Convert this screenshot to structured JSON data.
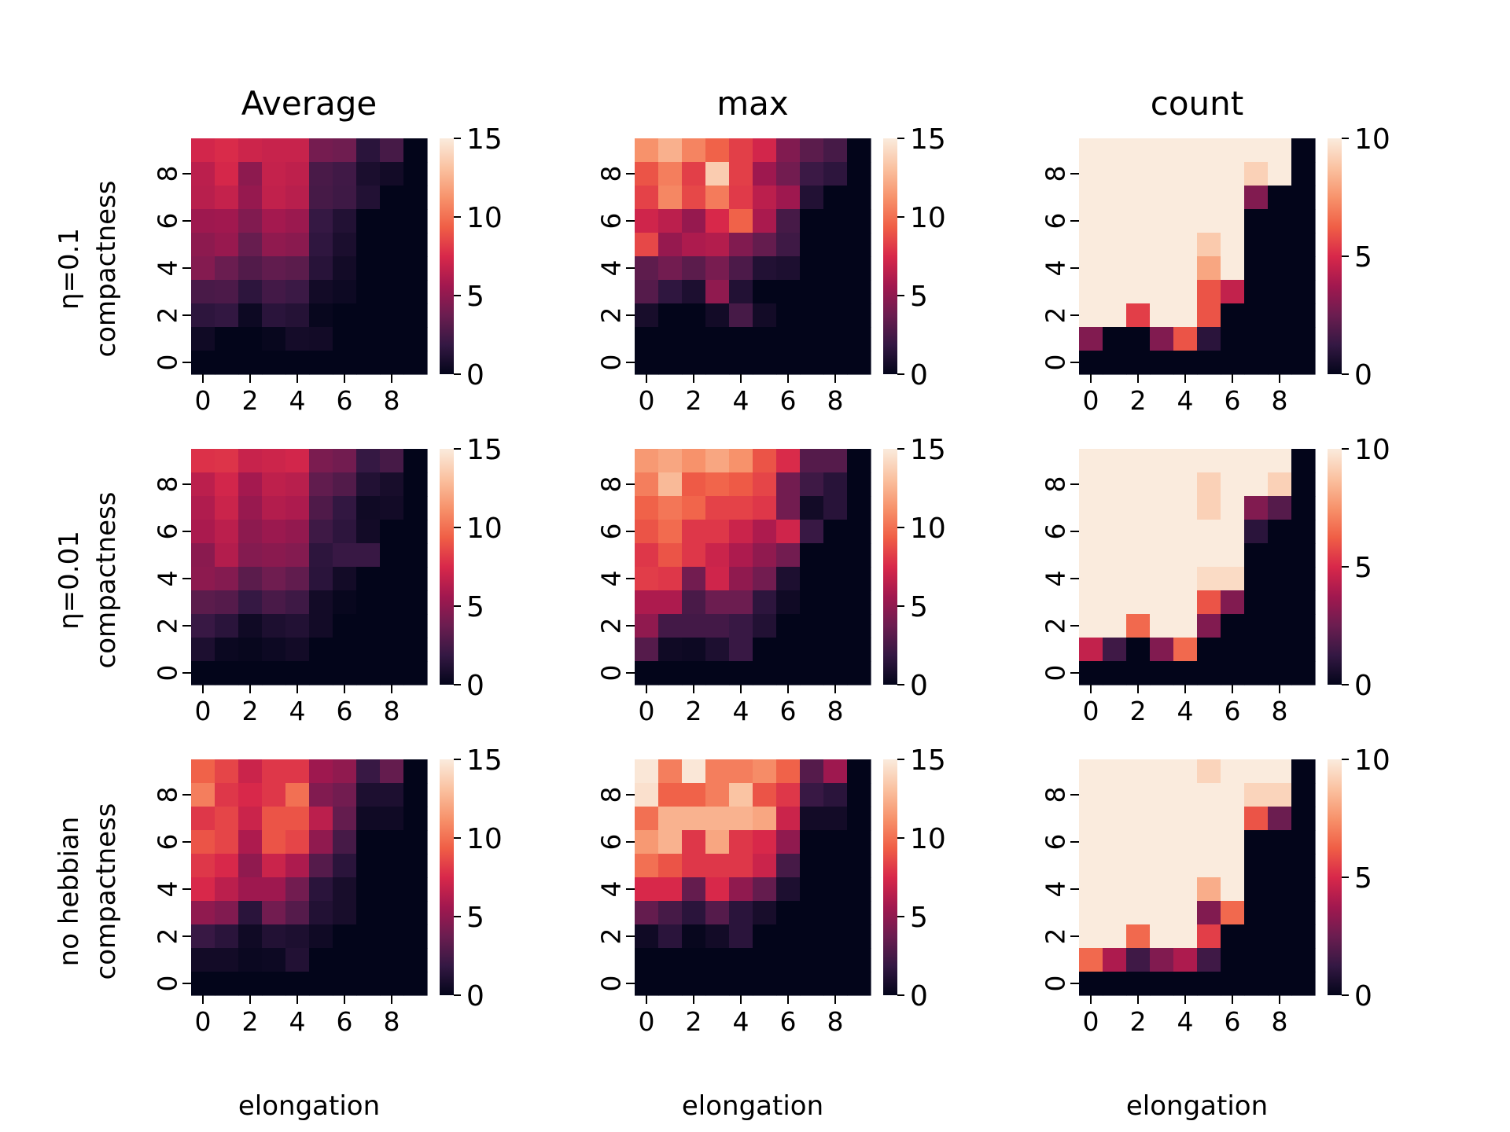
{
  "chart_data": {
    "type": "heatmap",
    "grid": {
      "rows": 10,
      "cols": 10
    },
    "col_titles": [
      "Average",
      "max",
      "count"
    ],
    "row_labels": [
      "η=0.1",
      "η=0.01",
      "no hebbian"
    ],
    "xlabel": "elongation",
    "ylabel": "compactness",
    "x_ticks": [
      "0",
      "2",
      "4",
      "6",
      "8"
    ],
    "y_ticks": [
      "0",
      "2",
      "4",
      "6",
      "8"
    ],
    "colorbars": [
      {
        "min": 0,
        "max": 15,
        "ticks": [
          "0",
          "5",
          "10",
          "15"
        ]
      },
      {
        "min": 0,
        "max": 15,
        "ticks": [
          "0",
          "5",
          "10",
          "15"
        ]
      },
      {
        "min": 0,
        "max": 10,
        "ticks": [
          "0",
          "5",
          "10"
        ]
      }
    ],
    "colormap": [
      "#03051a",
      "#341843",
      "#6b1d50",
      "#a2184f",
      "#d8284a",
      "#f05f46",
      "#f7936c",
      "#fac2a1",
      "#faebdd"
    ],
    "panels": [
      {
        "row": 0,
        "col": 0,
        "title": "Average",
        "vmax": 15,
        "values": [
          [
            7.3,
            7.6,
            7.1,
            6.9,
            6.9,
            4.1,
            3.9,
            1.5,
            2.5,
            0
          ],
          [
            6.5,
            7.4,
            4.9,
            6.8,
            6.6,
            2.6,
            2.3,
            0.9,
            0.6,
            0
          ],
          [
            6.4,
            6.8,
            5.2,
            6.7,
            6.4,
            2.5,
            2.2,
            1.2,
            0,
            0
          ],
          [
            5.5,
            5.6,
            4.5,
            5.7,
            5.4,
            1.9,
            1.2,
            0,
            0,
            0
          ],
          [
            4.9,
            5.3,
            3.6,
            5.0,
            4.8,
            1.7,
            0.9,
            0,
            0,
            0
          ],
          [
            4.6,
            3.7,
            2.9,
            3.4,
            3.2,
            1.4,
            0.6,
            0,
            0,
            0
          ],
          [
            2.6,
            2.7,
            1.6,
            2.4,
            2.1,
            0.6,
            0.4,
            0,
            0,
            0
          ],
          [
            1.6,
            1.8,
            0.4,
            1.5,
            1.3,
            0.2,
            0,
            0,
            0,
            0
          ],
          [
            0.5,
            0,
            0,
            0.2,
            0.7,
            0.6,
            0,
            0,
            0,
            0
          ],
          [
            0,
            0,
            0,
            0,
            0,
            0,
            0,
            0,
            0,
            0
          ]
        ]
      },
      {
        "row": 0,
        "col": 1,
        "title": "max",
        "vmax": 15,
        "values": [
          [
            11.2,
            12.4,
            10.7,
            9.5,
            8.3,
            7.3,
            4.5,
            3.2,
            2.5,
            0
          ],
          [
            9.0,
            10.5,
            8.3,
            13.6,
            8.3,
            5.5,
            4.0,
            2.1,
            1.6,
            0
          ],
          [
            8.4,
            10.8,
            8.6,
            10.4,
            8.1,
            6.5,
            5.5,
            1.2,
            0,
            0
          ],
          [
            7.2,
            6.5,
            5.2,
            7.5,
            9.5,
            5.9,
            2.5,
            0,
            0,
            0
          ],
          [
            8.6,
            5.2,
            6.0,
            6.2,
            4.5,
            3.5,
            2.2,
            0,
            0,
            0
          ],
          [
            3.3,
            4.0,
            3.2,
            4.2,
            2.7,
            1.2,
            1.0,
            0,
            0,
            0
          ],
          [
            3.0,
            1.7,
            1.0,
            5.0,
            1.2,
            0,
            0,
            0,
            0,
            0
          ],
          [
            0.8,
            0,
            0,
            0.6,
            2.5,
            0.6,
            0,
            0,
            0,
            0
          ],
          [
            0,
            0,
            0,
            0,
            0,
            0,
            0,
            0,
            0,
            0
          ],
          [
            0,
            0,
            0,
            0,
            0,
            0,
            0,
            0,
            0,
            0
          ]
        ]
      },
      {
        "row": 0,
        "col": 2,
        "title": "count",
        "vmax": 10,
        "values": [
          [
            10,
            10,
            10,
            10,
            10,
            10,
            10,
            10,
            10,
            0
          ],
          [
            10,
            10,
            10,
            10,
            10,
            10,
            10,
            9.2,
            10,
            0
          ],
          [
            10,
            10,
            10,
            10,
            10,
            10,
            10,
            3.0,
            0,
            0
          ],
          [
            10,
            10,
            10,
            10,
            10,
            10,
            10,
            0,
            0,
            0
          ],
          [
            10,
            10,
            10,
            10,
            10,
            9.0,
            10,
            0,
            0,
            0
          ],
          [
            10,
            10,
            10,
            10,
            10,
            8.0,
            10,
            0,
            0,
            0
          ],
          [
            10,
            10,
            10,
            10,
            10,
            6.0,
            4.5,
            0,
            0,
            0
          ],
          [
            10,
            10,
            5.5,
            10,
            10,
            6.0,
            0,
            0,
            0,
            0
          ],
          [
            3.0,
            0,
            0,
            3.0,
            6.0,
            1.0,
            0,
            0,
            0,
            0
          ],
          [
            0,
            0,
            0,
            0,
            0,
            0,
            0,
            0,
            0,
            0
          ]
        ]
      },
      {
        "row": 1,
        "col": 0,
        "title": "",
        "vmax": 15,
        "values": [
          [
            7.8,
            7.9,
            6.9,
            7.1,
            7.3,
            4.3,
            4.0,
            1.9,
            2.5,
            0
          ],
          [
            6.5,
            7.3,
            5.7,
            6.6,
            6.4,
            3.4,
            2.9,
            1.2,
            0.8,
            0
          ],
          [
            6.1,
            7.0,
            5.3,
            6.2,
            6.0,
            2.8,
            1.8,
            0.5,
            0.6,
            0
          ],
          [
            5.9,
            6.5,
            4.9,
            5.4,
            5.1,
            2.2,
            1.6,
            0.6,
            0,
            0
          ],
          [
            4.8,
            6.2,
            4.6,
            4.8,
            4.6,
            1.6,
            2.0,
            2.0,
            0,
            0
          ],
          [
            4.9,
            4.6,
            3.2,
            3.9,
            3.4,
            1.5,
            0.6,
            0,
            0,
            0
          ],
          [
            3.2,
            3.0,
            1.9,
            2.6,
            2.2,
            0.6,
            0.2,
            0,
            0,
            0
          ],
          [
            2.0,
            1.5,
            0.5,
            1.0,
            1.2,
            0.6,
            0,
            0,
            0,
            0
          ],
          [
            1.0,
            0.3,
            0.2,
            0.4,
            0.6,
            0,
            0,
            0,
            0,
            0
          ],
          [
            0,
            0,
            0,
            0,
            0,
            0,
            0,
            0,
            0,
            0
          ]
        ]
      },
      {
        "row": 1,
        "col": 1,
        "title": "",
        "vmax": 15,
        "values": [
          [
            11.5,
            12.0,
            11.2,
            12.0,
            11.2,
            9.0,
            7.6,
            3.0,
            3.0,
            0
          ],
          [
            10.5,
            12.8,
            9.2,
            9.6,
            9.2,
            8.5,
            4.0,
            2.2,
            1.4,
            0
          ],
          [
            9.5,
            10.2,
            9.6,
            8.4,
            8.4,
            8.0,
            4.0,
            0.6,
            1.4,
            0
          ],
          [
            9.0,
            9.8,
            8.0,
            8.0,
            7.0,
            6.0,
            7.2,
            2.0,
            0,
            0
          ],
          [
            8.0,
            9.0,
            8.0,
            7.0,
            6.0,
            5.0,
            4.0,
            0,
            0,
            0
          ],
          [
            8.2,
            8.0,
            4.0,
            7.2,
            5.0,
            4.0,
            1.0,
            0,
            0,
            0
          ],
          [
            6.0,
            6.0,
            2.6,
            3.8,
            3.8,
            1.6,
            0.5,
            0,
            0,
            0
          ],
          [
            5.0,
            2.4,
            2.4,
            2.4,
            2.0,
            1.2,
            0,
            0,
            0,
            0
          ],
          [
            3.0,
            0.5,
            0.4,
            1.0,
            2.0,
            0,
            0,
            0,
            0,
            0
          ],
          [
            0,
            0,
            0,
            0,
            0,
            0,
            0,
            0,
            0,
            0
          ]
        ]
      },
      {
        "row": 1,
        "col": 2,
        "title": "count",
        "vmax": 10,
        "values": [
          [
            10,
            10,
            10,
            10,
            10,
            10,
            10,
            10,
            10,
            0
          ],
          [
            10,
            10,
            10,
            10,
            10,
            9.2,
            10,
            10,
            9.2,
            0
          ],
          [
            10,
            10,
            10,
            10,
            10,
            9.2,
            10,
            3.0,
            2.0,
            0
          ],
          [
            10,
            10,
            10,
            10,
            10,
            10,
            10,
            1.0,
            0,
            0
          ],
          [
            10,
            10,
            10,
            10,
            10,
            10,
            10,
            0,
            0,
            0
          ],
          [
            10,
            10,
            10,
            10,
            10,
            9.5,
            9.5,
            0,
            0,
            0
          ],
          [
            10,
            10,
            10,
            10,
            10,
            6.0,
            3.0,
            0,
            0,
            0
          ],
          [
            10,
            10,
            6.5,
            10,
            10,
            3.0,
            0,
            0,
            0,
            0
          ],
          [
            4.5,
            1.5,
            0,
            3.0,
            6.5,
            0,
            0,
            0,
            0,
            0
          ],
          [
            0,
            0,
            0,
            0,
            0,
            0,
            0,
            0,
            0,
            0
          ]
        ]
      },
      {
        "row": 2,
        "col": 0,
        "title": "",
        "vmax": 15,
        "values": [
          [
            9.5,
            8.5,
            7.0,
            8.0,
            8.0,
            5.5,
            5.0,
            2.0,
            3.5,
            0
          ],
          [
            10.5,
            8.0,
            7.5,
            8.0,
            10.0,
            4.5,
            4.0,
            1.0,
            1.0,
            0
          ],
          [
            8.0,
            8.5,
            7.0,
            9.0,
            9.0,
            6.5,
            3.5,
            0.5,
            0.5,
            0
          ],
          [
            9.0,
            8.5,
            6.0,
            9.0,
            8.5,
            5.0,
            2.5,
            0,
            0,
            0
          ],
          [
            8.0,
            7.5,
            5.0,
            7.0,
            6.0,
            3.0,
            1.5,
            0,
            0,
            0
          ],
          [
            7.5,
            6.5,
            5.5,
            5.5,
            4.0,
            1.5,
            0.8,
            0,
            0,
            0
          ],
          [
            5.0,
            4.5,
            1.5,
            4.0,
            3.0,
            1.2,
            0.8,
            0,
            0,
            0
          ],
          [
            2.0,
            1.5,
            0.5,
            1.2,
            1.0,
            0.5,
            0,
            0,
            0,
            0
          ],
          [
            0.6,
            0.6,
            0.3,
            0.4,
            1.2,
            0,
            0,
            0,
            0,
            0
          ],
          [
            0,
            0,
            0,
            0,
            0,
            0,
            0,
            0,
            0,
            0
          ]
        ]
      },
      {
        "row": 2,
        "col": 1,
        "title": "",
        "vmax": 15,
        "values": [
          [
            14.8,
            10.5,
            14.8,
            10.5,
            10.5,
            11.0,
            9.5,
            3.0,
            5.5,
            0
          ],
          [
            14.5,
            9.5,
            9.5,
            10.5,
            13.2,
            9.0,
            8.0,
            2.0,
            1.5,
            0
          ],
          [
            10.0,
            12.5,
            12.5,
            12.5,
            12.5,
            12.0,
            7.0,
            0.6,
            0.6,
            0
          ],
          [
            11.5,
            12.5,
            8.0,
            12.0,
            8.0,
            7.5,
            5.0,
            0,
            0,
            0
          ],
          [
            10.0,
            9.0,
            8.0,
            8.0,
            8.0,
            7.0,
            2.5,
            0,
            0,
            0
          ],
          [
            7.5,
            7.5,
            3.5,
            7.5,
            5.0,
            3.5,
            1.0,
            0,
            0,
            0
          ],
          [
            3.5,
            2.5,
            1.5,
            3.0,
            1.5,
            0.8,
            0,
            0,
            0,
            0
          ],
          [
            0.5,
            1.5,
            0.2,
            0.6,
            1.5,
            0,
            0,
            0,
            0,
            0
          ],
          [
            0,
            0,
            0,
            0,
            0,
            0,
            0,
            0,
            0,
            0
          ],
          [
            0,
            0,
            0,
            0,
            0,
            0,
            0,
            0,
            0,
            0
          ]
        ]
      },
      {
        "row": 2,
        "col": 2,
        "title": "",
        "vmax": 10,
        "values": [
          [
            10,
            10,
            10,
            10,
            10,
            9.3,
            10,
            10,
            10,
            0
          ],
          [
            10,
            10,
            10,
            10,
            10,
            10,
            10,
            9.3,
            9.3,
            0
          ],
          [
            10,
            10,
            10,
            10,
            10,
            10,
            10,
            6.0,
            2.5,
            0
          ],
          [
            10,
            10,
            10,
            10,
            10,
            10,
            10,
            0,
            0,
            0
          ],
          [
            10,
            10,
            10,
            10,
            10,
            10,
            10,
            0,
            0,
            0
          ],
          [
            10,
            10,
            10,
            10,
            10,
            8.2,
            10,
            0,
            0,
            0
          ],
          [
            10,
            10,
            10,
            10,
            10,
            3.0,
            6.5,
            0,
            0,
            0
          ],
          [
            10,
            10,
            6.5,
            10,
            10,
            5.5,
            0,
            0,
            0,
            0
          ],
          [
            6.5,
            4.0,
            1.5,
            3.0,
            4.0,
            1.5,
            0,
            0,
            0,
            0
          ],
          [
            0,
            0,
            0,
            0,
            0,
            0,
            0,
            0,
            0,
            0
          ]
        ]
      }
    ]
  }
}
